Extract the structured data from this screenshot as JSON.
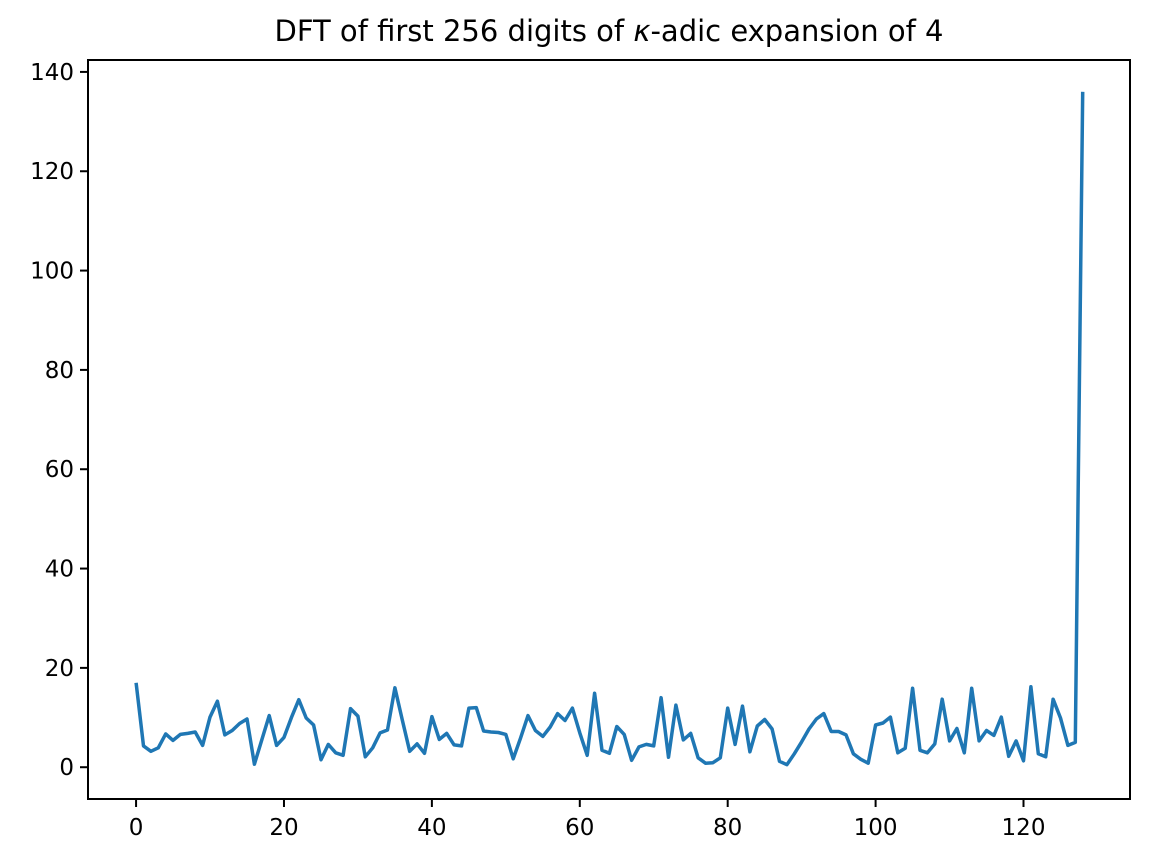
{
  "figure": {
    "background": "#ffffff",
    "title": {
      "full": "DFT of first 256 digits of κ-adic expansion of 4",
      "prefix": "DFT of first 256 digits of ",
      "math_symbol": "κ",
      "suffix": "-adic expansion of 4"
    }
  },
  "chart_data": {
    "type": "line",
    "title": "DFT of first 256 digits of κ-adic expansion of 4",
    "xlabel": "",
    "ylabel": "",
    "legend": null,
    "grid": false,
    "line_color": "#1f77b4",
    "axis_color": "#000000",
    "xlim": [
      -6.5,
      134.4
    ],
    "ylim": [
      -6.4,
      142.4
    ],
    "x_ticks": [
      0,
      20,
      40,
      60,
      80,
      100,
      120
    ],
    "y_ticks": [
      0,
      20,
      40,
      60,
      80,
      100,
      120,
      140
    ],
    "n_points": 129,
    "x_start": 0,
    "x_step": 1,
    "values": [
      17.0,
      4.3,
      3.2,
      3.9,
      6.7,
      5.4,
      6.6,
      6.8,
      7.1,
      4.4,
      10.1,
      13.3,
      6.5,
      7.4,
      8.8,
      9.7,
      0.6,
      5.5,
      10.4,
      4.4,
      6.0,
      10.0,
      13.6,
      9.9,
      8.5,
      1.5,
      4.6,
      2.9,
      2.4,
      11.8,
      10.3,
      2.1,
      3.9,
      6.9,
      7.5,
      16.0,
      9.5,
      3.2,
      4.7,
      2.8,
      10.2,
      5.6,
      6.8,
      4.5,
      4.3,
      11.9,
      12.0,
      7.3,
      7.1,
      7.0,
      6.6,
      1.7,
      5.9,
      10.4,
      7.4,
      6.2,
      8.1,
      10.8,
      9.4,
      11.9,
      6.9,
      2.4,
      14.9,
      3.4,
      2.8,
      8.2,
      6.6,
      1.4,
      4.1,
      4.6,
      4.3,
      14.0,
      2.0,
      12.5,
      5.5,
      6.8,
      1.9,
      0.8,
      0.9,
      1.9,
      11.9,
      4.6,
      12.3,
      3.1,
      8.3,
      9.6,
      7.7,
      1.2,
      0.5,
      2.7,
      5.1,
      7.7,
      9.7,
      10.8,
      7.2,
      7.2,
      6.5,
      2.7,
      1.6,
      0.8,
      8.5,
      8.9,
      10.1,
      2.9,
      3.8,
      15.9,
      3.4,
      2.9,
      4.7,
      13.7,
      5.3,
      7.8,
      2.9,
      15.9,
      5.3,
      7.4,
      6.4,
      10.1,
      2.2,
      5.3,
      1.3,
      16.2,
      2.7,
      2.1,
      13.7,
      9.9,
      4.4,
      5.0,
      136.0
    ]
  }
}
